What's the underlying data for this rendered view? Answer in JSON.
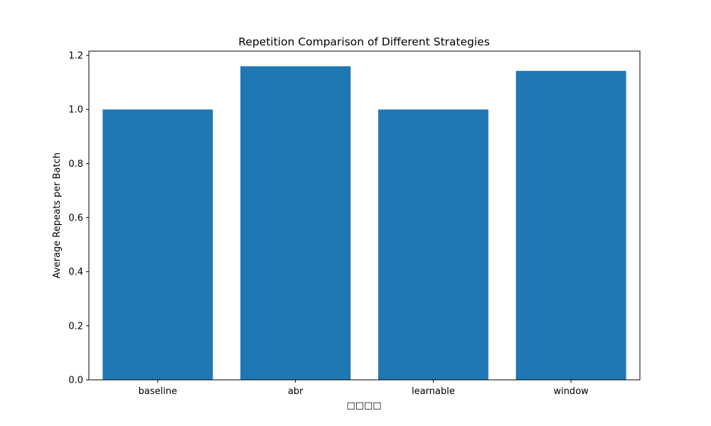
{
  "chart_data": {
    "type": "bar",
    "title": "Repetition Comparison of Different Strategies",
    "xlabel": "□□□□",
    "ylabel": "Average Repeats per Batch",
    "categories": [
      "baseline",
      "abr",
      "learnable",
      "window"
    ],
    "values": [
      1.0,
      1.16,
      1.0,
      1.143
    ],
    "ylim": [
      0,
      1.216
    ],
    "yticks": [
      0.0,
      0.2,
      0.4,
      0.6,
      0.8,
      1.0,
      1.2
    ],
    "ytick_labels": [
      "0.0",
      "0.2",
      "0.4",
      "0.6",
      "0.8",
      "1.0",
      "1.2"
    ],
    "grid": false,
    "bar_color": "#1f77b4"
  }
}
